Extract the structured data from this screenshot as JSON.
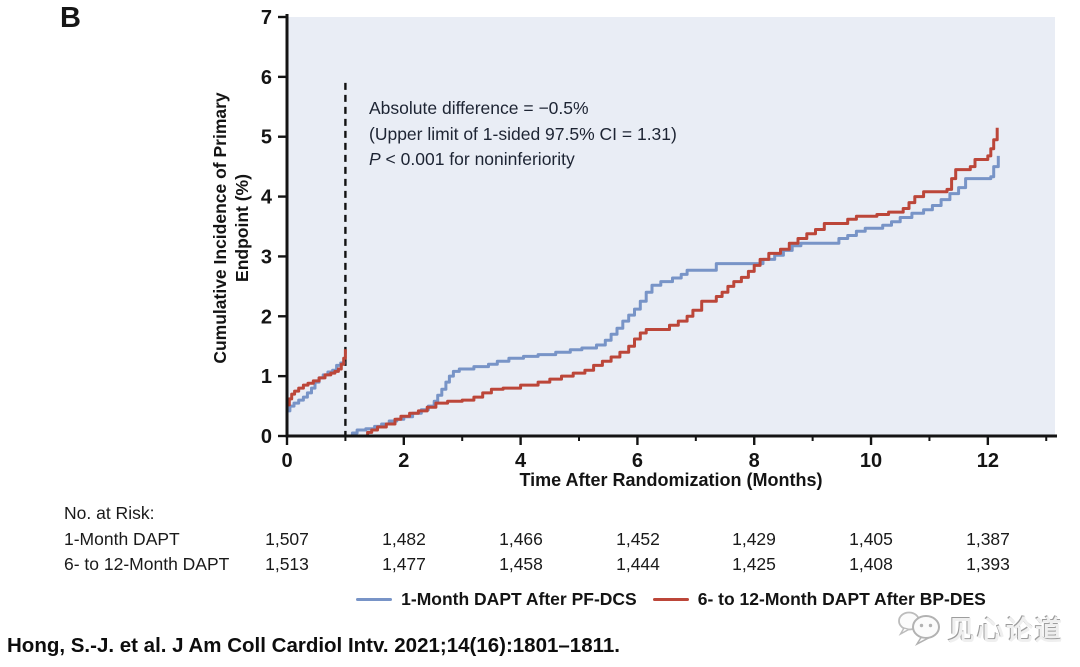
{
  "panel_label": "B",
  "chart_data": {
    "type": "line",
    "subtype": "kaplan-meier-step",
    "xlabel": "Time After Randomization (Months)",
    "ylabel_lines": [
      "Cumulative Incidence of Primary",
      "Endpoint (%)"
    ],
    "xlim": [
      0,
      13.15
    ],
    "ylim": [
      0,
      7
    ],
    "x_major_ticks": [
      0,
      2,
      4,
      6,
      8,
      10,
      12
    ],
    "x_minor_ticks": [
      1,
      3,
      5,
      7,
      9,
      11,
      13
    ],
    "y_ticks": [
      0,
      1,
      2,
      3,
      4,
      5,
      6,
      7
    ],
    "plot_bg": "#e9edf5",
    "axis_color": "#141414",
    "landmark_x": 1,
    "landmark_top_value": 5.9,
    "annotation": {
      "line1": "Absolute difference = −0.5%",
      "line2": "(Upper limit of 1-sided 97.5% CI = 1.31)",
      "p_italic": "P",
      "line3_rest": " < 0.001 for noninferiority"
    },
    "series": [
      {
        "id": "pf-dcs",
        "name": "1-Month DAPT After PF-DCS",
        "color": "#7894c7",
        "segments": [
          [
            [
              0,
              0.42
            ],
            [
              0.05,
              0.5
            ],
            [
              0.12,
              0.55
            ],
            [
              0.2,
              0.6
            ],
            [
              0.28,
              0.65
            ],
            [
              0.35,
              0.72
            ],
            [
              0.42,
              0.8
            ],
            [
              0.48,
              0.9
            ],
            [
              0.55,
              0.97
            ],
            [
              0.62,
              1.02
            ],
            [
              0.7,
              1.07
            ],
            [
              0.78,
              1.1
            ],
            [
              0.85,
              1.18
            ],
            [
              0.92,
              1.22
            ],
            [
              1.0,
              1.22
            ]
          ],
          [
            [
              1.05,
              0
            ],
            [
              1.12,
              0.05
            ],
            [
              1.2,
              0.1
            ],
            [
              1.35,
              0.12
            ],
            [
              1.5,
              0.16
            ],
            [
              1.62,
              0.2
            ],
            [
              1.75,
              0.25
            ],
            [
              1.88,
              0.28
            ],
            [
              2.0,
              0.32
            ],
            [
              2.15,
              0.38
            ],
            [
              2.3,
              0.44
            ],
            [
              2.42,
              0.5
            ],
            [
              2.52,
              0.58
            ],
            [
              2.58,
              0.68
            ],
            [
              2.65,
              0.78
            ],
            [
              2.72,
              0.9
            ],
            [
              2.78,
              1.0
            ],
            [
              2.85,
              1.08
            ],
            [
              2.95,
              1.12
            ],
            [
              3.2,
              1.16
            ],
            [
              3.45,
              1.2
            ],
            [
              3.6,
              1.25
            ],
            [
              3.8,
              1.3
            ],
            [
              4.05,
              1.33
            ],
            [
              4.3,
              1.36
            ],
            [
              4.6,
              1.4
            ],
            [
              4.85,
              1.44
            ],
            [
              5.05,
              1.47
            ],
            [
              5.3,
              1.52
            ],
            [
              5.45,
              1.6
            ],
            [
              5.55,
              1.7
            ],
            [
              5.65,
              1.8
            ],
            [
              5.75,
              1.92
            ],
            [
              5.85,
              2.02
            ],
            [
              5.95,
              2.12
            ],
            [
              6.05,
              2.25
            ],
            [
              6.15,
              2.4
            ],
            [
              6.25,
              2.52
            ],
            [
              6.4,
              2.58
            ],
            [
              6.6,
              2.64
            ],
            [
              6.75,
              2.7
            ],
            [
              6.85,
              2.77
            ],
            [
              7.35,
              2.88
            ],
            [
              8.15,
              2.95
            ],
            [
              8.35,
              3.02
            ],
            [
              8.5,
              3.1
            ],
            [
              8.65,
              3.18
            ],
            [
              8.8,
              3.22
            ],
            [
              9.45,
              3.3
            ],
            [
              9.6,
              3.35
            ],
            [
              9.75,
              3.42
            ],
            [
              9.9,
              3.47
            ],
            [
              10.2,
              3.52
            ],
            [
              10.35,
              3.58
            ],
            [
              10.5,
              3.65
            ],
            [
              10.7,
              3.72
            ],
            [
              10.9,
              3.78
            ],
            [
              11.05,
              3.85
            ],
            [
              11.2,
              3.95
            ],
            [
              11.35,
              4.05
            ],
            [
              11.5,
              4.15
            ],
            [
              11.62,
              4.3
            ],
            [
              12.05,
              4.33
            ],
            [
              12.1,
              4.5
            ],
            [
              12.18,
              4.68
            ]
          ]
        ]
      },
      {
        "id": "bp-des",
        "name": "6- to 12-Month DAPT After BP-DES",
        "color": "#bc4639",
        "segments": [
          [
            [
              0,
              0.52
            ],
            [
              0.04,
              0.62
            ],
            [
              0.08,
              0.7
            ],
            [
              0.13,
              0.75
            ],
            [
              0.2,
              0.8
            ],
            [
              0.28,
              0.85
            ],
            [
              0.36,
              0.88
            ],
            [
              0.45,
              0.92
            ],
            [
              0.55,
              0.97
            ],
            [
              0.65,
              1.02
            ],
            [
              0.75,
              1.05
            ],
            [
              0.82,
              1.08
            ],
            [
              0.88,
              1.12
            ],
            [
              0.93,
              1.2
            ],
            [
              0.97,
              1.3
            ],
            [
              1.0,
              1.45
            ]
          ],
          [
            [
              1.3,
              0
            ],
            [
              1.38,
              0.06
            ],
            [
              1.45,
              0.1
            ],
            [
              1.55,
              0.15
            ],
            [
              1.7,
              0.2
            ],
            [
              1.85,
              0.28
            ],
            [
              1.95,
              0.33
            ],
            [
              2.1,
              0.38
            ],
            [
              2.25,
              0.42
            ],
            [
              2.4,
              0.48
            ],
            [
              2.55,
              0.55
            ],
            [
              2.75,
              0.58
            ],
            [
              3.0,
              0.6
            ],
            [
              3.2,
              0.65
            ],
            [
              3.35,
              0.72
            ],
            [
              3.5,
              0.78
            ],
            [
              3.7,
              0.8
            ],
            [
              4.0,
              0.85
            ],
            [
              4.3,
              0.9
            ],
            [
              4.5,
              0.95
            ],
            [
              4.7,
              1.0
            ],
            [
              4.9,
              1.05
            ],
            [
              5.1,
              1.1
            ],
            [
              5.25,
              1.18
            ],
            [
              5.4,
              1.25
            ],
            [
              5.55,
              1.32
            ],
            [
              5.7,
              1.4
            ],
            [
              5.85,
              1.5
            ],
            [
              5.95,
              1.62
            ],
            [
              6.05,
              1.72
            ],
            [
              6.15,
              1.78
            ],
            [
              6.55,
              1.85
            ],
            [
              6.7,
              1.92
            ],
            [
              6.85,
              2.0
            ],
            [
              6.95,
              2.1
            ],
            [
              7.1,
              2.25
            ],
            [
              7.35,
              2.33
            ],
            [
              7.45,
              2.4
            ],
            [
              7.55,
              2.5
            ],
            [
              7.65,
              2.58
            ],
            [
              7.78,
              2.65
            ],
            [
              7.9,
              2.75
            ],
            [
              8.0,
              2.85
            ],
            [
              8.1,
              2.95
            ],
            [
              8.25,
              3.05
            ],
            [
              8.45,
              3.12
            ],
            [
              8.6,
              3.22
            ],
            [
              8.75,
              3.3
            ],
            [
              8.9,
              3.38
            ],
            [
              9.05,
              3.45
            ],
            [
              9.2,
              3.55
            ],
            [
              9.6,
              3.62
            ],
            [
              9.75,
              3.67
            ],
            [
              10.1,
              3.7
            ],
            [
              10.3,
              3.74
            ],
            [
              10.55,
              3.8
            ],
            [
              10.65,
              3.9
            ],
            [
              10.75,
              4.0
            ],
            [
              10.9,
              4.08
            ],
            [
              11.3,
              4.12
            ],
            [
              11.38,
              4.3
            ],
            [
              11.45,
              4.45
            ],
            [
              11.7,
              4.5
            ],
            [
              11.78,
              4.62
            ],
            [
              12.0,
              4.68
            ],
            [
              12.05,
              4.8
            ],
            [
              12.1,
              4.95
            ],
            [
              12.16,
              5.15
            ]
          ]
        ]
      }
    ]
  },
  "risk_table": {
    "title": "No. at Risk:",
    "time_points": [
      0,
      2,
      4,
      6,
      8,
      10,
      12
    ],
    "rows": [
      {
        "label": "1-Month DAPT",
        "counts": [
          "1,507",
          "1,482",
          "1,466",
          "1,452",
          "1,429",
          "1,405",
          "1,387"
        ]
      },
      {
        "label": "6- to 12-Month DAPT",
        "counts": [
          "1,513",
          "1,477",
          "1,458",
          "1,444",
          "1,425",
          "1,408",
          "1,393"
        ]
      }
    ]
  },
  "legend": {
    "items": [
      {
        "label": "1-Month DAPT After PF-DCS",
        "color": "#7894c7"
      },
      {
        "label": "6- to 12-Month DAPT After BP-DES",
        "color": "#bc4639"
      }
    ]
  },
  "citation": "Hong, S.-J. et al. J Am Coll Cardiol Intv. 2021;14(16):1801–1811.",
  "watermark": {
    "text": "见心论道"
  }
}
